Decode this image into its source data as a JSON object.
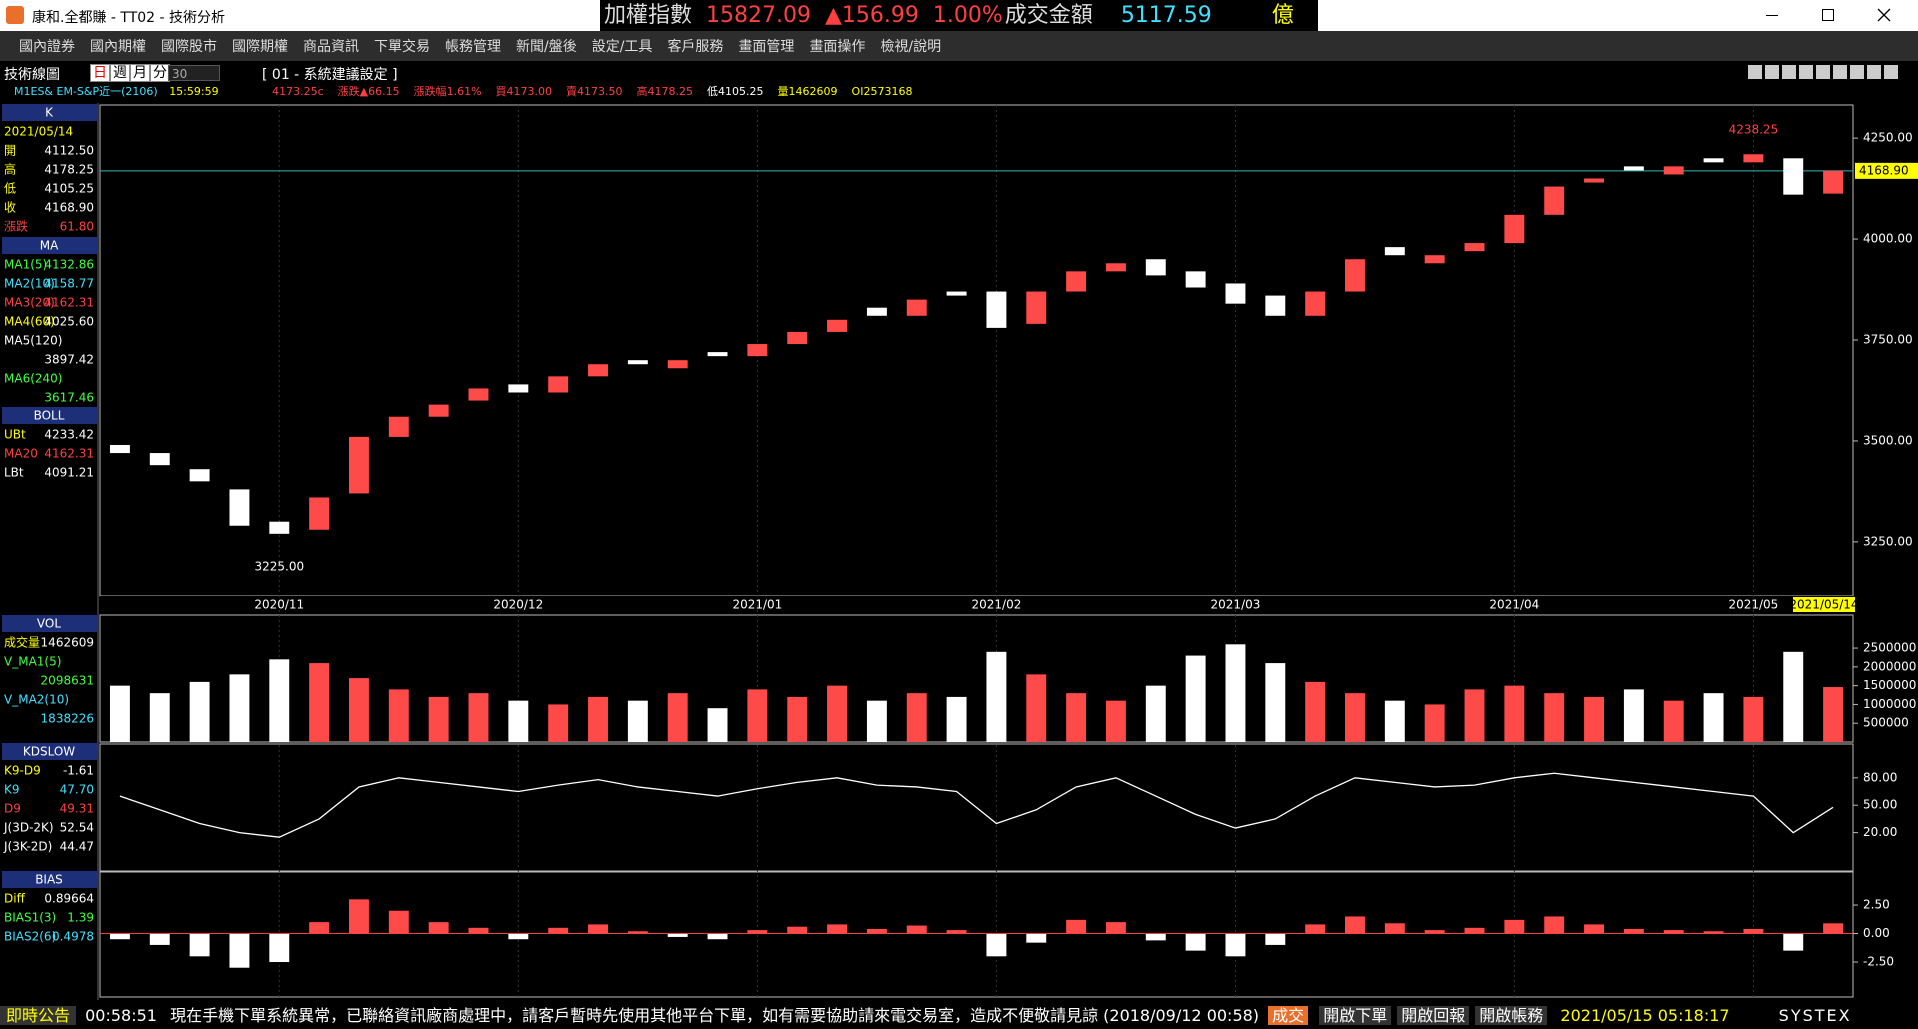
{
  "window": {
    "title": "康和.全都賺 - TT02 - 技術分析"
  },
  "ticker": {
    "name": "加權指數",
    "price": "15827.09",
    "change": "▲156.99",
    "pct": "1.00%",
    "turnover_label": "成交金額",
    "turnover": "5117.59",
    "unit": "億"
  },
  "menu": [
    "國內證券",
    "國內期權",
    "國際股市",
    "國際期權",
    "商品資訊",
    "下單交易",
    "帳務管理",
    "新聞/盤後",
    "設定/工具",
    "客戶服務",
    "畫面管理",
    "畫面操作",
    "檢視/說明"
  ],
  "toolbar": {
    "label": "技術線圖",
    "periods": [
      "日",
      "週",
      "月",
      "分"
    ],
    "count": "30",
    "setting": "[ 01 - 系統建議設定 ]"
  },
  "quote": {
    "symbol": "M1ES&  EM-S&P近一(2106)",
    "time": "15:59:59",
    "items": [
      "4173.25c",
      "漲跌▲66.15",
      "漲跌幅1.61%",
      "買4173.00",
      "賣4173.50",
      "高4178.25",
      "低4105.25",
      "量1462609",
      "OI2573168"
    ]
  },
  "panels": [
    {
      "header": "K",
      "rows": [
        {
          "label": "2021/05/14",
          "value": "",
          "color": "#ffff00"
        },
        {
          "label": "開",
          "value": "4112.50",
          "color": "#ffff00"
        },
        {
          "label": "高",
          "value": "4178.25",
          "color": "#ffff00"
        },
        {
          "label": "低",
          "value": "4105.25",
          "color": "#ffff00"
        },
        {
          "label": "收",
          "value": "4168.90",
          "color": "#ffff00"
        },
        {
          "label": "漲跌",
          "value": "61.80",
          "color": "#ff4040"
        }
      ]
    },
    {
      "header": "MA",
      "rows": [
        {
          "label": "MA1(5)",
          "value": "4132.86",
          "color": "#40ff40"
        },
        {
          "label": "MA2(10)",
          "value": "4158.77",
          "color": "#40e0ff"
        },
        {
          "label": "MA3(20)",
          "value": "4162.31",
          "color": "#ff4040"
        },
        {
          "label": "MA4(60)",
          "value": "4025.60",
          "color": "#ffff00"
        },
        {
          "label": "MA5(120)",
          "value": "3897.42",
          "color": "#ffffff"
        },
        {
          "label": "MA6(240)",
          "value": "3617.46",
          "color": "#40ff40"
        }
      ]
    },
    {
      "header": "BOLL",
      "rows": [
        {
          "label": "UBt",
          "value": "4233.42",
          "color": "#ffff00"
        },
        {
          "label": "MA20",
          "value": "4162.31",
          "color": "#ff4040"
        },
        {
          "label": "LBt",
          "value": "4091.21",
          "color": "#ffffff"
        }
      ]
    },
    {
      "header": "VOL",
      "rows": [
        {
          "label": "成交量",
          "value": "1462609",
          "color": "#ffff00"
        },
        {
          "label": "V_MA1(5)",
          "value": "2098631",
          "color": "#40ff40"
        },
        {
          "label": "V_MA2(10)",
          "value": "1838226",
          "color": "#40e0ff"
        }
      ]
    },
    {
      "header": "KDSLOW",
      "rows": [
        {
          "label": "K9-D9",
          "value": "-1.61",
          "color": "#ffff00"
        },
        {
          "label": "K9",
          "value": "47.70",
          "color": "#40e0ff"
        },
        {
          "label": "D9",
          "value": "49.31",
          "color": "#ff4040"
        },
        {
          "label": "J(3D-2K)",
          "value": "52.54",
          "color": "#ffffff"
        },
        {
          "label": "J(3K-2D)",
          "value": "44.47",
          "color": "#ffffff"
        }
      ]
    },
    {
      "header": "BIAS",
      "rows": [
        {
          "label": "Diff",
          "value": "0.89664",
          "color": "#ffff00"
        },
        {
          "label": "BIAS1(3)",
          "value": "1.39",
          "color": "#40ff40"
        },
        {
          "label": "BIAS2(6)",
          "value": "0.4978",
          "color": "#40e0ff"
        }
      ]
    }
  ],
  "chart_data": [
    {
      "type": "candlestick",
      "categories": [
        null,
        null,
        null,
        null,
        "2020/11",
        null,
        null,
        null,
        null,
        null,
        "2020/12",
        null,
        null,
        null,
        null,
        null,
        "2021/01",
        null,
        null,
        null,
        null,
        null,
        "2021/02",
        null,
        null,
        null,
        null,
        null,
        "2021/03",
        null,
        null,
        null,
        null,
        null,
        null,
        "2021/04",
        null,
        null,
        null,
        null,
        null,
        "2021/05",
        null,
        "2021/05/14"
      ],
      "open": [
        3490,
        3470,
        3430,
        3380,
        3300,
        3280,
        3370,
        3510,
        3560,
        3600,
        3640,
        3620,
        3660,
        3700,
        3680,
        3720,
        3710,
        3740,
        3770,
        3830,
        3810,
        3870,
        3870,
        3790,
        3870,
        3920,
        3950,
        3920,
        3890,
        3860,
        3810,
        3870,
        3980,
        3940,
        3970,
        3990,
        4060,
        4140,
        4180,
        4160,
        4200,
        4190,
        4200,
        4112.5
      ],
      "close": [
        3470,
        3440,
        3400,
        3290,
        3270,
        3360,
        3510,
        3560,
        3590,
        3630,
        3620,
        3660,
        3690,
        3690,
        3700,
        3710,
        3740,
        3770,
        3800,
        3810,
        3850,
        3860,
        3780,
        3870,
        3920,
        3940,
        3910,
        3880,
        3840,
        3810,
        3870,
        3950,
        3960,
        3960,
        3990,
        4060,
        4130,
        4150,
        4170,
        4180,
        4190,
        4210,
        4110,
        4168.9
      ],
      "last_label": "4168.90",
      "annotations": [
        "4238.25",
        "3225.00"
      ],
      "up_color": "#ff4a4a",
      "down_color": "#ffffff",
      "ylim": [
        3116,
        4332
      ],
      "yticks": [
        {
          "value": 3250,
          "label": "3250.00"
        },
        {
          "value": 3500,
          "label": "3500.00"
        },
        {
          "value": 3750,
          "label": "3750.00"
        },
        {
          "value": 4000,
          "label": "4000.00"
        },
        {
          "value": 4250,
          "label": "4250.00"
        }
      ]
    },
    {
      "type": "bar",
      "values": [
        1500000,
        1300000,
        1600000,
        1800000,
        2200000,
        2100000,
        1700000,
        1400000,
        1200000,
        1300000,
        1100000,
        1000000,
        1200000,
        1100000,
        1300000,
        900000,
        1400000,
        1200000,
        1500000,
        1100000,
        1300000,
        1200000,
        2400000,
        1800000,
        1300000,
        1100000,
        1500000,
        2300000,
        2600000,
        2100000,
        1600000,
        1300000,
        1100000,
        1000000,
        1400000,
        1500000,
        1300000,
        1200000,
        1400000,
        1100000,
        1300000,
        1200000,
        2400000,
        1462609
      ],
      "ylim": [
        0,
        3380000
      ],
      "yticks": [
        500000,
        1000000,
        1500000,
        2000000,
        2500000
      ]
    },
    {
      "type": "line",
      "values": [
        60,
        45,
        30,
        20,
        15,
        35,
        70,
        80,
        75,
        70,
        65,
        72,
        78,
        70,
        65,
        60,
        68,
        75,
        80,
        72,
        70,
        65,
        30,
        45,
        70,
        80,
        60,
        40,
        25,
        35,
        60,
        80,
        75,
        70,
        72,
        80,
        85,
        80,
        75,
        70,
        65,
        60,
        20,
        47.7
      ],
      "color": "#ffffff",
      "ylim": [
        -22,
        117
      ],
      "yticks": [
        {
          "value": 20,
          "label": "20.00"
        },
        {
          "value": 50,
          "label": "50.00"
        },
        {
          "value": 80,
          "label": "80.00"
        }
      ]
    },
    {
      "type": "bar",
      "values": [
        -0.5,
        -1,
        -2,
        -3,
        -2.5,
        1,
        3,
        2,
        1,
        0.5,
        -0.5,
        0.5,
        0.8,
        0.2,
        -0.3,
        -0.5,
        0.3,
        0.6,
        0.8,
        0.4,
        0.7,
        0.3,
        -2,
        -0.8,
        1.2,
        1,
        -0.6,
        -1.5,
        -2,
        -1,
        0.8,
        1.5,
        0.9,
        0.3,
        0.5,
        1.2,
        1.5,
        0.8,
        0.4,
        0.3,
        0.2,
        0.4,
        -1.5,
        0.89664
      ],
      "ylim": [
        -5.57,
        5.4
      ],
      "yticks": [
        {
          "value": -2.5,
          "label": "-2.50"
        },
        {
          "value": 0,
          "label": "0.00"
        },
        {
          "value": 2.5,
          "label": "2.50"
        }
      ]
    }
  ],
  "status": {
    "notice": "即時公告",
    "time": "00:58:51",
    "message": "現在手機下單系統異常，已聯絡資訊廠商處理中，請客戶暫時先使用其他平台下單，如有需要協助請來電交易室，造成不便敬請見諒 (2018/09/12 00:58)",
    "deal": "成交",
    "buttons": [
      "開啟下單",
      "開啟回報",
      "開啟帳務"
    ],
    "clock": "2021/05/15 05:18:17",
    "brand": "SYSTEX"
  }
}
